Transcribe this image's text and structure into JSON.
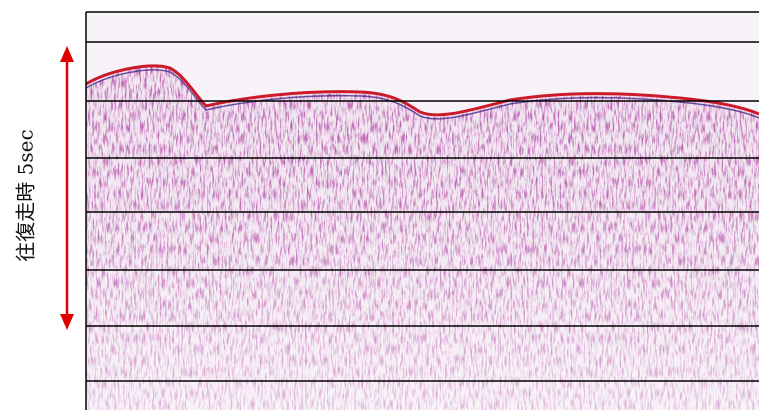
{
  "axis_label": "往復走時 5sec",
  "colors": {
    "frame": "#000000",
    "arrow": "#e00000",
    "seafloor": "#cc1a2a",
    "noise": "#7a1f6e"
  }
}
